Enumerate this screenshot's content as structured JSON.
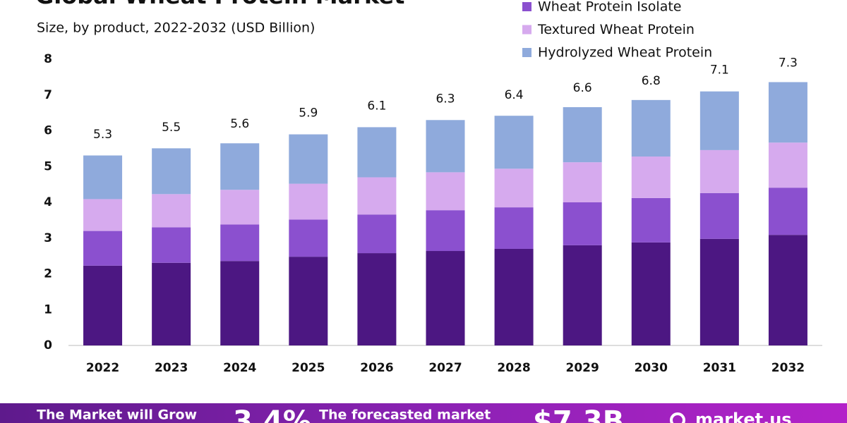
{
  "chart_data": {
    "type": "stacked-bar",
    "title": "Global Wheat Protein Market",
    "subtitle": "Size, by product, 2022-2032 (USD Billion)",
    "categories": [
      "2022",
      "2023",
      "2024",
      "2025",
      "2026",
      "2027",
      "2028",
      "2029",
      "2030",
      "2031",
      "2032"
    ],
    "series": [
      {
        "color": "#4c1782",
        "values": [
          2.23,
          2.31,
          2.36,
          2.48,
          2.58,
          2.64,
          2.7,
          2.8,
          2.88,
          2.98,
          3.09
        ]
      },
      {
        "name": "Wheat Protein Isolate",
        "color": "#8b50cf",
        "values": [
          0.97,
          0.99,
          1.02,
          1.04,
          1.08,
          1.14,
          1.16,
          1.2,
          1.24,
          1.28,
          1.32
        ]
      },
      {
        "name": "Textured Wheat Protein",
        "color": "#d6aaee",
        "values": [
          0.89,
          0.93,
          0.97,
          1.0,
          1.04,
          1.06,
          1.08,
          1.12,
          1.16,
          1.2,
          1.26
        ]
      },
      {
        "name": "Hydrolyzed Wheat Protein",
        "color": "#8faadc",
        "values": [
          1.22,
          1.28,
          1.3,
          1.38,
          1.4,
          1.46,
          1.48,
          1.54,
          1.58,
          1.64,
          1.69
        ]
      }
    ],
    "totals": [
      5.3,
      5.5,
      5.6,
      5.9,
      6.1,
      6.3,
      6.4,
      6.6,
      6.8,
      7.1,
      7.3
    ],
    "ylim": [
      0,
      8
    ],
    "yticks": [
      0,
      1,
      2,
      3,
      4,
      5,
      6,
      7,
      8
    ],
    "grid": false
  },
  "footer": {
    "grow_text": "The Market will Grow",
    "cagr": "3.4%",
    "forecast_text": "The forecasted market",
    "forecast_value": "$7.3B",
    "brand": "market.us"
  }
}
